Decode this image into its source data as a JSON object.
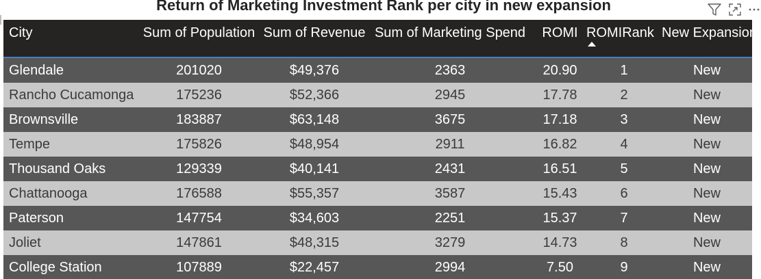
{
  "visual": {
    "title": "Return of Marketing Investment Rank per city in new expansion",
    "header_icons": [
      "filter-icon",
      "focus-mode-icon",
      "more-options-icon"
    ]
  },
  "table": {
    "columns": [
      "City",
      "Sum of Population",
      "Sum of Revenue",
      "Sum of Marketing Spend",
      "ROMI",
      "ROMIRank",
      "New Expansion"
    ],
    "sort": {
      "column": "ROMIRank",
      "direction": "ascending"
    },
    "rows": [
      {
        "city": "Glendale",
        "population": "201020",
        "revenue": "$49,376",
        "marketing": "2363",
        "romi": "20.90",
        "rank": "1",
        "expansion": "New"
      },
      {
        "city": "Rancho Cucamonga",
        "population": "175236",
        "revenue": "$52,366",
        "marketing": "2945",
        "romi": "17.78",
        "rank": "2",
        "expansion": "New"
      },
      {
        "city": "Brownsville",
        "population": "183887",
        "revenue": "$63,148",
        "marketing": "3675",
        "romi": "17.18",
        "rank": "3",
        "expansion": "New"
      },
      {
        "city": "Tempe",
        "population": "175826",
        "revenue": "$48,954",
        "marketing": "2911",
        "romi": "16.82",
        "rank": "4",
        "expansion": "New"
      },
      {
        "city": "Thousand Oaks",
        "population": "129339",
        "revenue": "$40,141",
        "marketing": "2431",
        "romi": "16.51",
        "rank": "5",
        "expansion": "New"
      },
      {
        "city": "Chattanooga",
        "population": "176588",
        "revenue": "$55,357",
        "marketing": "3587",
        "romi": "15.43",
        "rank": "6",
        "expansion": "New"
      },
      {
        "city": "Paterson",
        "population": "147754",
        "revenue": "$34,603",
        "marketing": "2251",
        "romi": "15.37",
        "rank": "7",
        "expansion": "New"
      },
      {
        "city": "Joliet",
        "population": "147861",
        "revenue": "$48,315",
        "marketing": "3279",
        "romi": "14.73",
        "rank": "8",
        "expansion": "New"
      },
      {
        "city": "College Station",
        "population": "107889",
        "revenue": "$22,457",
        "marketing": "2994",
        "romi": "7.50",
        "rank": "9",
        "expansion": "New"
      }
    ]
  },
  "colors": {
    "header_bg": "#252423",
    "row_dark": "#575757",
    "row_light": "#c8c8c8",
    "header_underline": "#4a7fc1"
  }
}
